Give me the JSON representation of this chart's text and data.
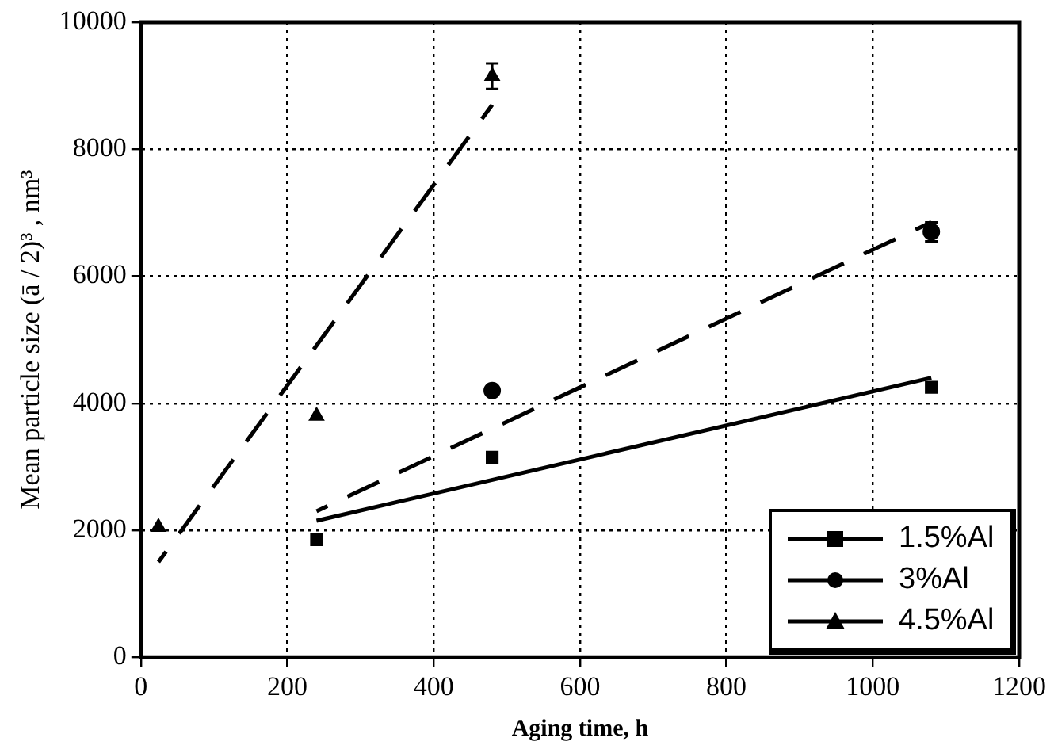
{
  "chart_data": {
    "type": "scatter",
    "xlabel": "Aging time, h",
    "ylabel": "Mean particle size (ā / 2)³ , nm³",
    "xlim": [
      0,
      1200
    ],
    "xticks": [
      0,
      200,
      400,
      600,
      800,
      1000,
      1200
    ],
    "ylim": [
      0,
      10000
    ],
    "yticks": [
      0,
      2000,
      4000,
      6000,
      8000,
      10000
    ],
    "grid": true,
    "legend": "bottom right",
    "series": [
      {
        "name": "1.5%Al",
        "type": "scatter",
        "marker": "square",
        "color": "#000000",
        "x": [
          240,
          480,
          1080
        ],
        "values": [
          1850,
          3150,
          4250
        ]
      },
      {
        "name": "3%Al",
        "type": "scatter",
        "marker": "circle",
        "color": "#000000",
        "x": [
          480,
          1080
        ],
        "values": [
          4200,
          6700
        ],
        "errors": [
          null,
          150
        ]
      },
      {
        "name": "4.5%Al",
        "type": "scatter",
        "marker": "triangle",
        "color": "#000000",
        "x": [
          24,
          240,
          480
        ],
        "values": [
          2050,
          3800,
          9150
        ],
        "errors": [
          null,
          null,
          200
        ]
      },
      {
        "type": "line",
        "line_style": "solid",
        "color": "#000000",
        "x": [
          240,
          1080
        ],
        "values": [
          2150,
          4400
        ]
      },
      {
        "type": "line",
        "line_style": "dashed",
        "color": "#000000",
        "x": [
          240,
          1080
        ],
        "values": [
          2300,
          6850
        ]
      },
      {
        "type": "line",
        "line_style": "dashed",
        "color": "#000000",
        "x": [
          24,
          480
        ],
        "values": [
          1500,
          8700
        ]
      }
    ]
  }
}
